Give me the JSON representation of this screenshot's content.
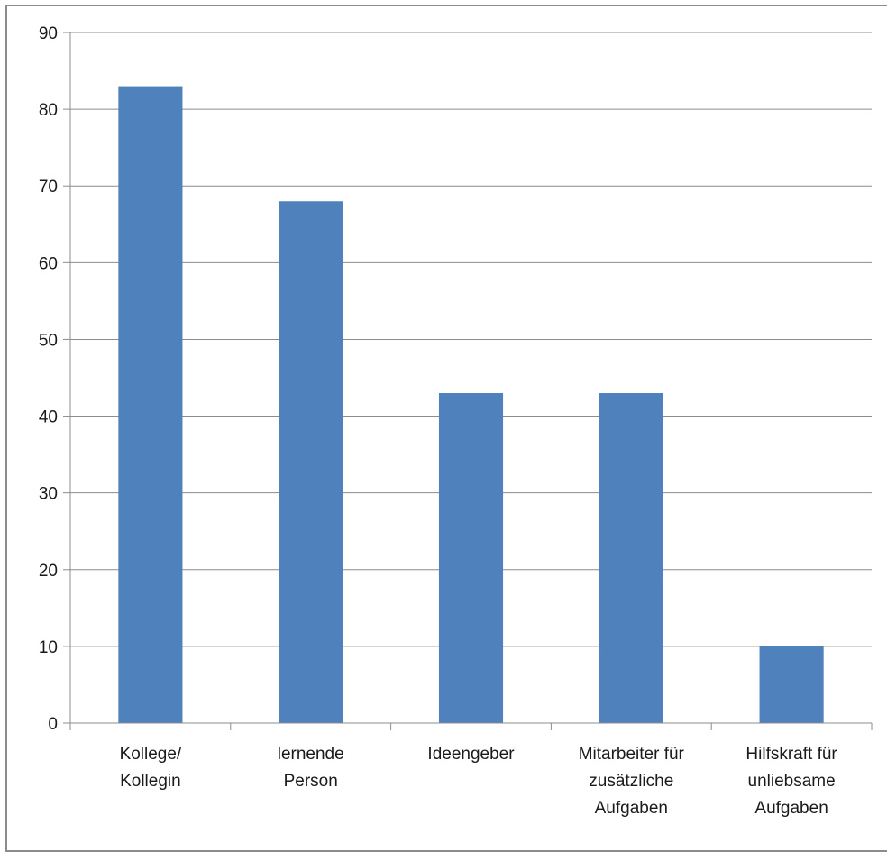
{
  "chart_data": {
    "type": "bar",
    "title": "",
    "xlabel": "",
    "ylabel": "",
    "categories": [
      [
        "Kollege/",
        "Kollegin"
      ],
      [
        "lernende",
        "Person"
      ],
      [
        "Ideengeber"
      ],
      [
        "Mitarbeiter für",
        "zusätzliche",
        "Aufgaben"
      ],
      [
        "Hilfskraft für",
        "unliebsame",
        "Aufgaben"
      ]
    ],
    "values": [
      83,
      68,
      43,
      43,
      10
    ],
    "ylim": [
      0,
      90
    ],
    "yticks": [
      0,
      10,
      20,
      30,
      40,
      50,
      60,
      70,
      80,
      90
    ],
    "grid": true,
    "legend": "none",
    "colors": {
      "bar": "#4f81bd",
      "grid": "#8c8c8c",
      "axis": "#8c8c8c",
      "border": "#8c8c8c"
    }
  }
}
